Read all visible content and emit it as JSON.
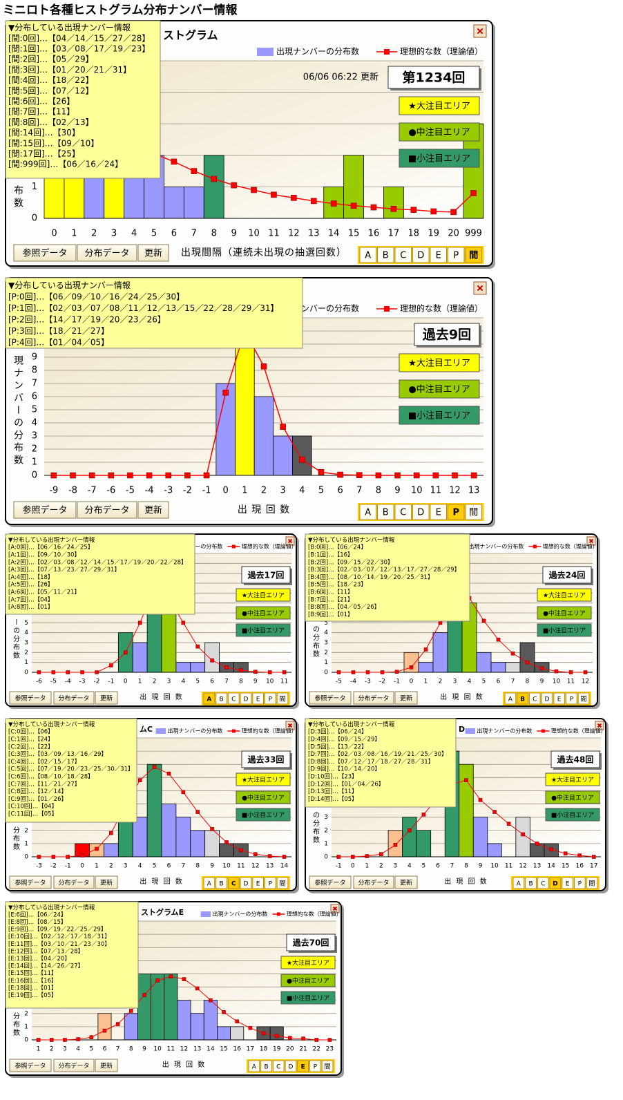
{
  "title": "ミニロト各種ヒストグラム分布ナンバー情報",
  "chart_data": [
    {
      "type": "bar",
      "title": "ストグラム",
      "updated": "06/06 06:22 更新",
      "badge": "第1234回",
      "tooltip": {
        "heading": "▼分布している出現ナンバー情報",
        "lines": [
          "[間:0回]…【04／14／15／27／28】",
          "[間:1回]…【03／08／17／19／23】",
          "[間:2回]…【05／29】",
          "[間:3回]…【01／20／21／31】",
          "[間:4回]…【18／22】",
          "[間:5回]…【07／12】",
          "[間:6回]…【26】",
          "[間:7回]…【11】",
          "[間:8回]…【02／13】",
          "[間:14回]…【30】",
          "[間:15回]…【09／10】",
          "[間:17回]…【25】",
          "[間:999回]…【06／16／24】"
        ]
      },
      "area_labels": [
        "★大注目エリア",
        "●中注目エリア",
        "■小注目エリア"
      ],
      "area_colors": [
        "#ffff00",
        "#99cc00",
        "#339966"
      ],
      "ylabel": "布数",
      "xlabel": "出現間隔（連続未出現の抽選回数）",
      "categories": [
        0,
        1,
        2,
        3,
        4,
        5,
        6,
        7,
        8,
        9,
        10,
        11,
        12,
        13,
        14,
        15,
        16,
        17,
        18,
        19,
        20,
        999
      ],
      "series": [
        {
          "name": "出現ナンバーの分布数",
          "type": "bar",
          "color": "#9999ff",
          "values": [
            5,
            5,
            2,
            4,
            2,
            2,
            1,
            1,
            2,
            0,
            0,
            0,
            0,
            0,
            1,
            2,
            0,
            1,
            0,
            0,
            0,
            3
          ],
          "colors": [
            "#ffff00",
            "#ffff00",
            "#9999ff",
            "#ffff00",
            "#9999ff",
            "#9999ff",
            "#9999ff",
            "#9999ff",
            "#339966",
            "#9999ff",
            "#9999ff",
            "#9999ff",
            "#9999ff",
            "#9999ff",
            "#99cc00",
            "#99cc00",
            "#9999ff",
            "#99cc00",
            "#9999ff",
            "#9999ff",
            "#9999ff",
            "#99cc00"
          ]
        },
        {
          "name": "理想的な数（理論値）",
          "type": "line",
          "color": "#ff0000",
          "values": [
            3.8,
            3.3,
            2.9,
            2.6,
            2.3,
            2.05,
            1.8,
            1.5,
            1.25,
            1.05,
            0.9,
            0.75,
            0.65,
            0.55,
            0.47,
            0.4,
            0.35,
            0.3,
            0.27,
            0.22,
            0.2,
            0.8
          ]
        }
      ],
      "ylim": [
        0,
        5
      ],
      "yticks": [
        0,
        1,
        2,
        3,
        4,
        5
      ],
      "grid": true,
      "buttons": [
        "参照データ",
        "分布データ",
        "更新"
      ],
      "tabs": [
        "A",
        "B",
        "C",
        "D",
        "E",
        "P",
        "間"
      ],
      "active_tab": 6
    },
    {
      "type": "bar",
      "badge": "過去9回",
      "tooltip": {
        "heading": "▼分布している出現ナンバー情報",
        "lines": [
          "[P:0回]…【06／09／10／16／24／25／30】",
          "[P:1回]…【02／03／07／08／11／12／13／15／22／28／29／31】",
          "[P:2回]…【14／17／19／20／23／26】",
          "[P:3回]…【18／21／27】",
          "[P:4回]…【01／04／05】"
        ]
      },
      "area_labels": [
        "★大注目エリア",
        "●中注目エリア",
        "■小注目エリア"
      ],
      "area_colors": [
        "#ffff00",
        "#99cc00",
        "#339966"
      ],
      "ylabel": "現ナンバーの分布数",
      "xlabel": "出 現 回 数",
      "categories": [
        -9,
        -8,
        -7,
        -6,
        -5,
        -4,
        -3,
        -2,
        -1,
        0,
        1,
        2,
        3,
        4,
        5,
        6,
        7,
        8,
        9,
        10,
        11,
        12,
        13
      ],
      "series": [
        {
          "name": "出現ナンバーの分布数",
          "type": "bar",
          "color": "#9999ff",
          "values": [
            0,
            0,
            0,
            0,
            0,
            0,
            0,
            0,
            0,
            7,
            12,
            6,
            3,
            3,
            0,
            0,
            0,
            0,
            0,
            0,
            0,
            0,
            0
          ],
          "colors": [
            "#9999ff",
            "#9999ff",
            "#9999ff",
            "#9999ff",
            "#9999ff",
            "#9999ff",
            "#9999ff",
            "#9999ff",
            "#9999ff",
            "#9999ff",
            "#ffff00",
            "#9999ff",
            "#9999ff",
            "#595959",
            "#9999ff",
            "#9999ff",
            "#9999ff",
            "#9999ff",
            "#9999ff",
            "#9999ff",
            "#9999ff",
            "#9999ff",
            "#9999ff"
          ]
        },
        {
          "name": "理想的な数（理論値）",
          "type": "line",
          "color": "#ff0000",
          "values": [
            0,
            0,
            0,
            0,
            0,
            0,
            0,
            0,
            0,
            6.3,
            11,
            8.3,
            3.7,
            1.2,
            0.25,
            0.05,
            0.02,
            0,
            0,
            0,
            0,
            0,
            0
          ]
        }
      ],
      "ylim": [
        0,
        12
      ],
      "yticks": [
        0,
        1,
        2,
        3,
        4,
        5,
        6,
        7,
        8,
        9,
        10,
        11,
        12
      ],
      "grid": true,
      "buttons": [
        "参照データ",
        "分布データ",
        "更新"
      ],
      "tabs": [
        "A",
        "B",
        "C",
        "D",
        "E",
        "P",
        "間"
      ],
      "active_tab": 5
    },
    {
      "type": "bar",
      "badge": "過去17回",
      "tooltip": {
        "heading": "▼分布している出現ナンバー情報",
        "lines": [
          "[A:0回]…【06／16／24／25】",
          "[A:1回]…【09／10／30】",
          "[A:2回]…【02／03／08／12／14／15／17／19／20／22／28】",
          "[A:3回]…【07／13／23／27／29／31】",
          "[A:4回]…【18】",
          "[A:5回]…【26】",
          "[A:6回]…【05／11／21】",
          "[A:7回]…【04】",
          "[A:8回]…【01】"
        ]
      },
      "area_labels": [
        "★大注目エリア",
        "●中注目エリア",
        "■小注目エリア"
      ],
      "area_colors": [
        "#ffff00",
        "#99cc00",
        "#339966"
      ],
      "ylabel": "ーの分布数",
      "xlabel": "出 現 回 数",
      "categories": [
        -6,
        -5,
        -4,
        -3,
        -2,
        -1,
        0,
        1,
        2,
        3,
        4,
        5,
        6,
        7,
        8,
        9,
        10,
        11
      ],
      "series": [
        {
          "name": "出現ナンバーの分布数",
          "type": "bar",
          "color": "#9999ff",
          "values": [
            0,
            0,
            0,
            0,
            0,
            0,
            4,
            3,
            11,
            6,
            1,
            1,
            3,
            1,
            1,
            0,
            0,
            0
          ],
          "colors": [
            "#9999ff",
            "#9999ff",
            "#9999ff",
            "#9999ff",
            "#9999ff",
            "#9999ff",
            "#339966",
            "#9999ff",
            "#339966",
            "#99cc00",
            "#9999ff",
            "#9999ff",
            "#d9d9d9",
            "#595959",
            "#595959",
            "#9999ff",
            "#9999ff",
            "#9999ff"
          ]
        },
        {
          "name": "理想的な数（理論値）",
          "type": "line",
          "color": "#ff0000",
          "values": [
            0,
            0,
            0,
            0,
            0,
            0.7,
            2,
            5,
            8.5,
            7.5,
            5,
            2.6,
            1.2,
            0.5,
            0.2,
            0.05,
            0,
            0
          ]
        }
      ],
      "ylim": [
        0,
        12
      ],
      "yticks": [
        0,
        1,
        2,
        3,
        4,
        5,
        6,
        7,
        8,
        9,
        10,
        11,
        12
      ],
      "grid": true,
      "buttons": [
        "参照データ",
        "分布データ",
        "更新"
      ],
      "tabs": [
        "A",
        "B",
        "C",
        "D",
        "E",
        "P",
        "間"
      ],
      "active_tab": 0
    },
    {
      "type": "bar",
      "badge": "過去24回",
      "tooltip": {
        "heading": "▼分布している出現ナンバー情報",
        "lines": [
          "[B:0回]…【06／24】",
          "[B:1回]…【16】",
          "[B:2回]…【09／15／22／30】",
          "[B:3回]…【02／03／07／12／13／17／27／28／29】",
          "[B:4回]…【08／10／14／19／20／25／31】",
          "[B:5回]…【18／23】",
          "[B:6回]…【11】",
          "[B:7回]…【21】",
          "[B:8回]…【04／05／26】",
          "[B:9回]…【01】"
        ]
      },
      "area_labels": [
        "★大注目エリア",
        "●中注目エリア",
        "■小注目エリア"
      ],
      "area_colors": [
        "#ffff00",
        "#99cc00",
        "#339966"
      ],
      "ylabel": "の分布数",
      "xlabel": "出 現 回 数",
      "categories": [
        -5,
        -4,
        -3,
        -2,
        -1,
        0,
        1,
        2,
        3,
        4,
        5,
        6,
        7,
        8,
        9,
        10,
        11,
        12
      ],
      "series": [
        {
          "name": "出現ナンバーの分布数",
          "type": "bar",
          "color": "#9999ff",
          "values": [
            0,
            0,
            0,
            0,
            0,
            2,
            1,
            4,
            9,
            7,
            2,
            1,
            1,
            3,
            1,
            0,
            0,
            0
          ],
          "colors": [
            "#9999ff",
            "#9999ff",
            "#9999ff",
            "#9999ff",
            "#9999ff",
            "#fac090",
            "#9999ff",
            "#9999ff",
            "#339966",
            "#99cc00",
            "#9999ff",
            "#9999ff",
            "#d9d9d9",
            "#595959",
            "#595959",
            "#9999ff",
            "#9999ff",
            "#9999ff"
          ]
        },
        {
          "name": "理想的な数（理論値）",
          "type": "line",
          "color": "#ff0000",
          "values": [
            0,
            0,
            0,
            0,
            0.05,
            0.5,
            2.3,
            5,
            7.8,
            7.5,
            5.2,
            3.3,
            1.9,
            1,
            0.4,
            0.1,
            0,
            0
          ]
        }
      ],
      "ylim": [
        0,
        12
      ],
      "yticks": [
        0,
        1,
        2,
        3,
        4,
        5,
        6,
        7,
        8,
        9,
        10,
        11,
        12
      ],
      "grid": true,
      "buttons": [
        "参照データ",
        "分布データ",
        "更新"
      ],
      "tabs": [
        "A",
        "B",
        "C",
        "D",
        "E",
        "P",
        "間"
      ],
      "active_tab": 1
    },
    {
      "type": "bar",
      "title": "ムC",
      "badge": "過去33回",
      "tooltip": {
        "heading": "▼分布している出現ナンバー情報",
        "lines": [
          "[C:0回]…【06】",
          "[C:1回]…【24】",
          "[C:2回]…【22】",
          "[C:3回]…【03／09／13／16／29】",
          "[C:4回]…【02／15／17】",
          "[C:5回]…【07／19／20／23／25／30／31】",
          "[C:6回]…【08／10／18／28】",
          "[C:7回]…【11／21／27】",
          "[C:8回]…【12／14】",
          "[C:9回]…【01／26】",
          "[C:10回]…【04】",
          "[C:11回]…【05】"
        ]
      },
      "area_labels": [
        "★大注目エリア",
        "●中注目エリア",
        "■小注目エリア"
      ],
      "area_colors": [
        "#ffff00",
        "#99cc00",
        "#339966"
      ],
      "ylabel": "分布数",
      "xlabel": "出 現 回 数",
      "categories": [
        -3,
        -2,
        -1,
        0,
        1,
        2,
        3,
        4,
        5,
        6,
        7,
        8,
        9,
        10,
        11,
        12,
        13,
        14
      ],
      "series": [
        {
          "name": "出現ナンバーの分布数",
          "type": "bar",
          "color": "#9999ff",
          "values": [
            0,
            0,
            0,
            1,
            1,
            1,
            5,
            3,
            7,
            4,
            3,
            2,
            2,
            1,
            1,
            0,
            0,
            0
          ],
          "colors": [
            "#9999ff",
            "#9999ff",
            "#9999ff",
            "#ff0000",
            "#fac090",
            "#9999ff",
            "#339966",
            "#9999ff",
            "#339966",
            "#9999ff",
            "#9999ff",
            "#9999ff",
            "#d9d9d9",
            "#595959",
            "#595959",
            "#9999ff",
            "#9999ff",
            "#9999ff"
          ]
        },
        {
          "name": "理想的な数（理論値）",
          "type": "line",
          "color": "#ff0000",
          "values": [
            0,
            0,
            0,
            0.1,
            0.6,
            1.8,
            3.9,
            5.8,
            6.8,
            6.3,
            4.9,
            3.4,
            2.1,
            1.1,
            0.5,
            0.2,
            0.05,
            0
          ]
        }
      ],
      "ylim": [
        0,
        9
      ],
      "yticks": [
        0,
        1,
        2,
        3,
        4,
        5,
        6,
        7,
        8,
        9
      ],
      "grid": true,
      "buttons": [
        "参照データ",
        "分布データ",
        "更新"
      ],
      "tabs": [
        "A",
        "B",
        "C",
        "D",
        "E",
        "P",
        "間"
      ],
      "active_tab": 2
    },
    {
      "type": "bar",
      "title": "D",
      "badge": "過去48回",
      "tooltip": {
        "heading": "▼分布している出現ナンバー情報",
        "lines": [
          "[D:3回]…【06／24】",
          "[D:4回]…【09／15／29】",
          "[D:5回]…【13／22】",
          "[D:7回]…【02／03／08／16／19／21／25／30】",
          "[D:8回]…【07／12／17／18／27／28／31】",
          "[D:9回]…【10／14／20】",
          "[D:10回]…【23】",
          "[D:12回]…【01／04／26】",
          "[D:13回]…【11】",
          "[D:14回]…【05】"
        ]
      },
      "area_labels": [
        "★大注目エリア",
        "●中注目エリア",
        "■小注目エリア"
      ],
      "area_colors": [
        "#ffff00",
        "#99cc00",
        "#339966"
      ],
      "ylabel": "の分布数",
      "xlabel": "出 現 回 数",
      "categories": [
        -1,
        0,
        1,
        2,
        3,
        4,
        5,
        6,
        7,
        8,
        9,
        10,
        11,
        12,
        13,
        14,
        15,
        16,
        17
      ],
      "series": [
        {
          "name": "出現ナンバーの分布数",
          "type": "bar",
          "color": "#9999ff",
          "values": [
            0,
            0,
            0,
            0,
            2,
            3,
            2,
            0,
            8,
            7,
            3,
            1,
            0,
            3,
            1,
            1,
            0,
            0,
            0
          ],
          "colors": [
            "#9999ff",
            "#9999ff",
            "#9999ff",
            "#9999ff",
            "#fac090",
            "#339966",
            "#339966",
            "#9999ff",
            "#339966",
            "#99cc00",
            "#9999ff",
            "#9999ff",
            "#9999ff",
            "#d9d9d9",
            "#595959",
            "#595959",
            "#9999ff",
            "#9999ff",
            "#9999ff"
          ]
        },
        {
          "name": "理想的な数（理論値）",
          "type": "line",
          "color": "#ff0000",
          "values": [
            0,
            0,
            0.05,
            0.2,
            0.9,
            2,
            3.2,
            4.5,
            5.5,
            5.8,
            4.3,
            3.4,
            2.5,
            1.7,
            1,
            0.55,
            0.25,
            0.1,
            0
          ]
        }
      ],
      "ylim": [
        0,
        9
      ],
      "yticks": [
        0,
        1,
        2,
        3,
        4,
        5,
        6,
        7,
        8,
        9
      ],
      "grid": true,
      "buttons": [
        "参照データ",
        "分布データ",
        "更新"
      ],
      "tabs": [
        "A",
        "B",
        "C",
        "D",
        "E",
        "P",
        "間"
      ],
      "active_tab": 3
    },
    {
      "type": "bar",
      "title": "ストグラムE",
      "badge": "過去70回",
      "tooltip": {
        "heading": "▼分布している出現ナンバー情報",
        "lines": [
          "[E:6回]…【06／24】",
          "[E:8回]…【08／15】",
          "[E:9回]…【09／19／22／25／29】",
          "[E:10回]…【02／12／17／18／31】",
          "[E:11回]…【03／10／21／23／30】",
          "[E:12回]…【07／13／28】",
          "[E:13回]…【04／20】",
          "[E:14回]…【14／26／27】",
          "[E:15回]…【11】",
          "[E:16回]…【16】",
          "[E:18回]…【01】",
          "[E:19回]…【05】"
        ]
      },
      "area_labels": [
        "★大注目エリア",
        "●中注目エリア",
        "■小注目エリア"
      ],
      "area_colors": [
        "#ffff00",
        "#99cc00",
        "#339966"
      ],
      "ylabel": "分布数",
      "xlabel": "出 現 回 数",
      "categories": [
        1,
        2,
        3,
        4,
        5,
        6,
        7,
        8,
        9,
        10,
        11,
        12,
        13,
        14,
        15,
        16,
        17,
        18,
        19,
        20,
        21,
        22,
        23
      ],
      "series": [
        {
          "name": "出現ナンバーの分布数",
          "type": "bar",
          "color": "#9999ff",
          "values": [
            0,
            0,
            0,
            0,
            0,
            2,
            0,
            2,
            5,
            5,
            5,
            3,
            2,
            3,
            1,
            1,
            0,
            1,
            1,
            0,
            0,
            0,
            0
          ],
          "colors": [
            "#9999ff",
            "#9999ff",
            "#9999ff",
            "#9999ff",
            "#9999ff",
            "#fac090",
            "#9999ff",
            "#9999ff",
            "#339966",
            "#339966",
            "#339966",
            "#9999ff",
            "#9999ff",
            "#9999ff",
            "#9999ff",
            "#d9d9d9",
            "#9999ff",
            "#595959",
            "#595959",
            "#9999ff",
            "#9999ff",
            "#9999ff",
            "#9999ff"
          ]
        },
        {
          "name": "理想的な数（理論値）",
          "type": "line",
          "color": "#ff0000",
          "values": [
            0,
            0,
            0,
            0.05,
            0.2,
            0.7,
            1.2,
            2.2,
            3.4,
            4.5,
            4.8,
            4.6,
            3.9,
            3,
            2.1,
            1.4,
            0.9,
            0.5,
            0.3,
            0.15,
            0.1,
            0,
            0
          ]
        }
      ],
      "ylim": [
        0,
        9
      ],
      "yticks": [
        0,
        1,
        2,
        3,
        4,
        5,
        6,
        7,
        8,
        9
      ],
      "grid": true,
      "buttons": [
        "参照データ",
        "分布データ",
        "更新"
      ],
      "tabs": [
        "A",
        "B",
        "C",
        "D",
        "E",
        "P",
        "間"
      ],
      "active_tab": 4
    }
  ]
}
